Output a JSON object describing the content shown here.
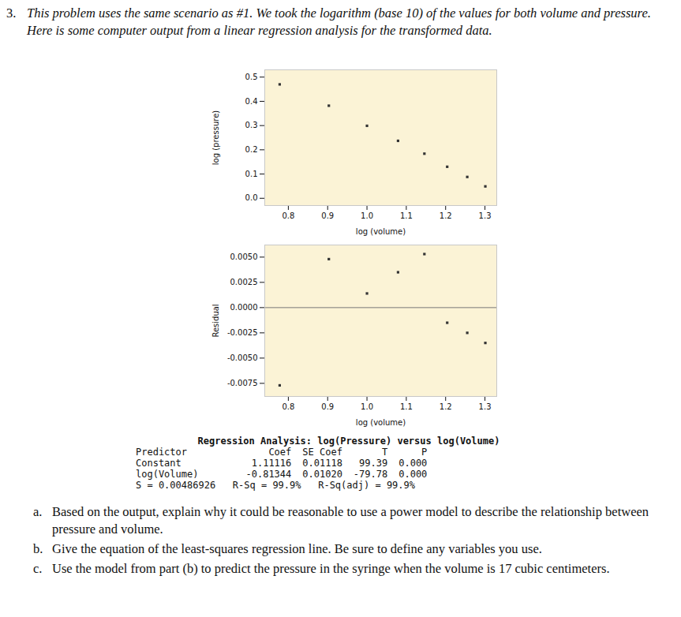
{
  "document": {
    "number": "3.",
    "intro": "This problem uses the same scenario as #1. We took the logarithm (base 10) of the values for both volume and pressure. Here is some computer output from a linear regression analysis for the transformed data.",
    "output": {
      "title": "Regression Analysis: log(Pressure) versus log(Volume)",
      "header": [
        "Predictor",
        "Coef",
        "SE Coef",
        "T",
        "P"
      ],
      "rows": [
        [
          "Constant",
          "1.11116",
          "0.01118",
          "99.39",
          "0.000"
        ],
        [
          "log(Volume)",
          "-0.81344",
          "0.01020",
          "-79.78",
          "0.000"
        ]
      ],
      "summary": "S = 0.00486926   R-Sq = 99.9%   R-Sq(adj) = 99.9%"
    },
    "questions": [
      {
        "label": "a.",
        "text": "Based on the output, explain why it could be reasonable to use a power model to describe the relationship between pressure and volume."
      },
      {
        "label": "b.",
        "text": "Give the equation of the least-squares regression line. Be sure to define any variables you use."
      },
      {
        "label": "c.",
        "text": "Use the model from part (b) to predict the pressure in the syringe when the volume is 17 cubic centimeters."
      }
    ]
  },
  "chart_data": [
    {
      "type": "scatter",
      "x_label": "log (volume)",
      "y_label": "log (pressure)",
      "x": [
        0.778,
        0.903,
        1.0,
        1.079,
        1.146,
        1.204,
        1.255,
        1.301
      ],
      "values": [
        0.47,
        0.382,
        0.299,
        0.237,
        0.184,
        0.13,
        0.088,
        0.049
      ],
      "color": "#333333",
      "marker": "square",
      "xlim": [
        0.74,
        1.33
      ],
      "ylim": [
        -0.03,
        0.53
      ],
      "xticks": [
        0.8,
        0.9,
        {
          "value": 1.0,
          "label": "1.0"
        },
        1.1,
        1.2,
        1.3
      ],
      "yticks": [
        {
          "value": 0,
          "label": "0.0"
        },
        0.1,
        0.2,
        0.3,
        0.4,
        0.5
      ]
    },
    {
      "type": "scatter",
      "x_label": "log (volume)",
      "y_label": "Residual",
      "x": [
        0.778,
        0.903,
        1.0,
        1.079,
        1.146,
        1.204,
        1.255,
        1.301
      ],
      "values": [
        -0.0077,
        0.0048,
        0.0014,
        0.0035,
        0.0053,
        -0.0015,
        -0.0025,
        -0.0035
      ],
      "color": "#333333",
      "marker": "square",
      "reference_line": 0,
      "xlim": [
        0.74,
        1.33
      ],
      "ylim": [
        -0.0088,
        0.0062
      ],
      "xticks": [
        0.8,
        0.9,
        {
          "value": 1.0,
          "label": "1.0"
        },
        1.1,
        1.2,
        1.3
      ],
      "yticks": [
        {
          "value": -0.0075,
          "label": "-0.0075"
        },
        {
          "value": -0.005,
          "label": "-0.0050"
        },
        {
          "value": -0.0025,
          "label": "-0.0025"
        },
        {
          "value": 0,
          "label": "0.0000"
        },
        {
          "value": 0.0025,
          "label": "0.0025"
        },
        {
          "value": 0.005,
          "label": "0.0050"
        }
      ]
    }
  ]
}
